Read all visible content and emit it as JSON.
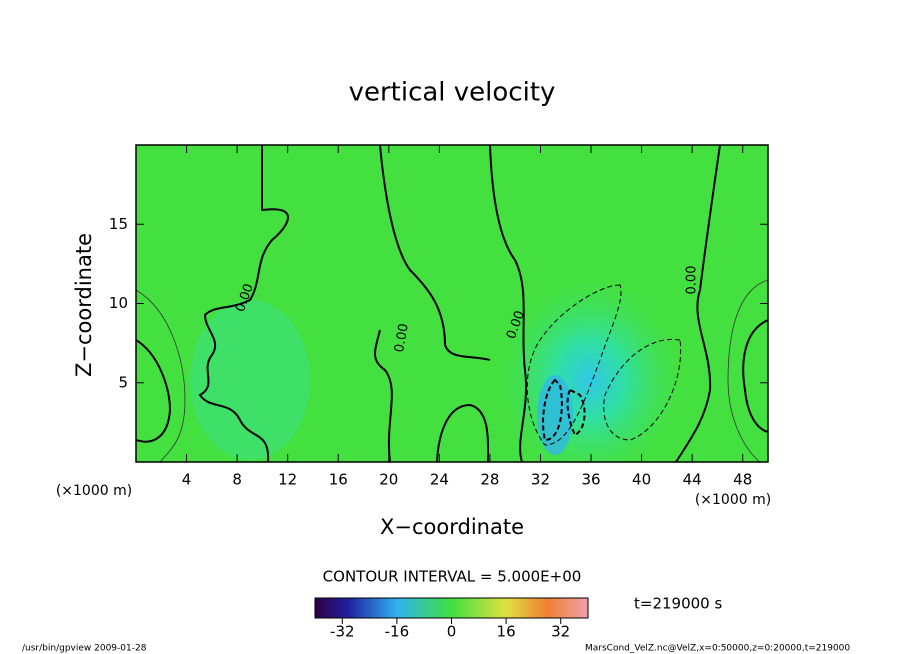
{
  "chart_data": {
    "type": "contour",
    "title": "vertical velocity",
    "x_label": "X−coordinate",
    "y_label": "Z−coordinate",
    "x_unit": "(×1000 m)",
    "y_unit": "(×1000 m)",
    "xlim": [
      0,
      50
    ],
    "xticks": [
      4,
      8,
      12,
      16,
      20,
      24,
      28,
      32,
      36,
      40,
      44,
      48
    ],
    "ylim": [
      0,
      20
    ],
    "yticks": [
      5,
      10,
      15
    ],
    "contour_labels": [
      "0.00",
      "0.00",
      "0.00",
      "0.00"
    ],
    "contour_interval_label": "CONTOUR INTERVAL = 5.000E+00",
    "colorbar": {
      "lim": [
        -40,
        40
      ],
      "ticks": [
        -32,
        -16,
        0,
        16,
        32
      ]
    },
    "time_label": "t=219000 s",
    "footer_left": "/usr/bin/gpview  2009-01-28",
    "footer_right": "MarsCond_VelZ.nc@VelZ,x=0:50000,z=0:20000,t=219000"
  }
}
